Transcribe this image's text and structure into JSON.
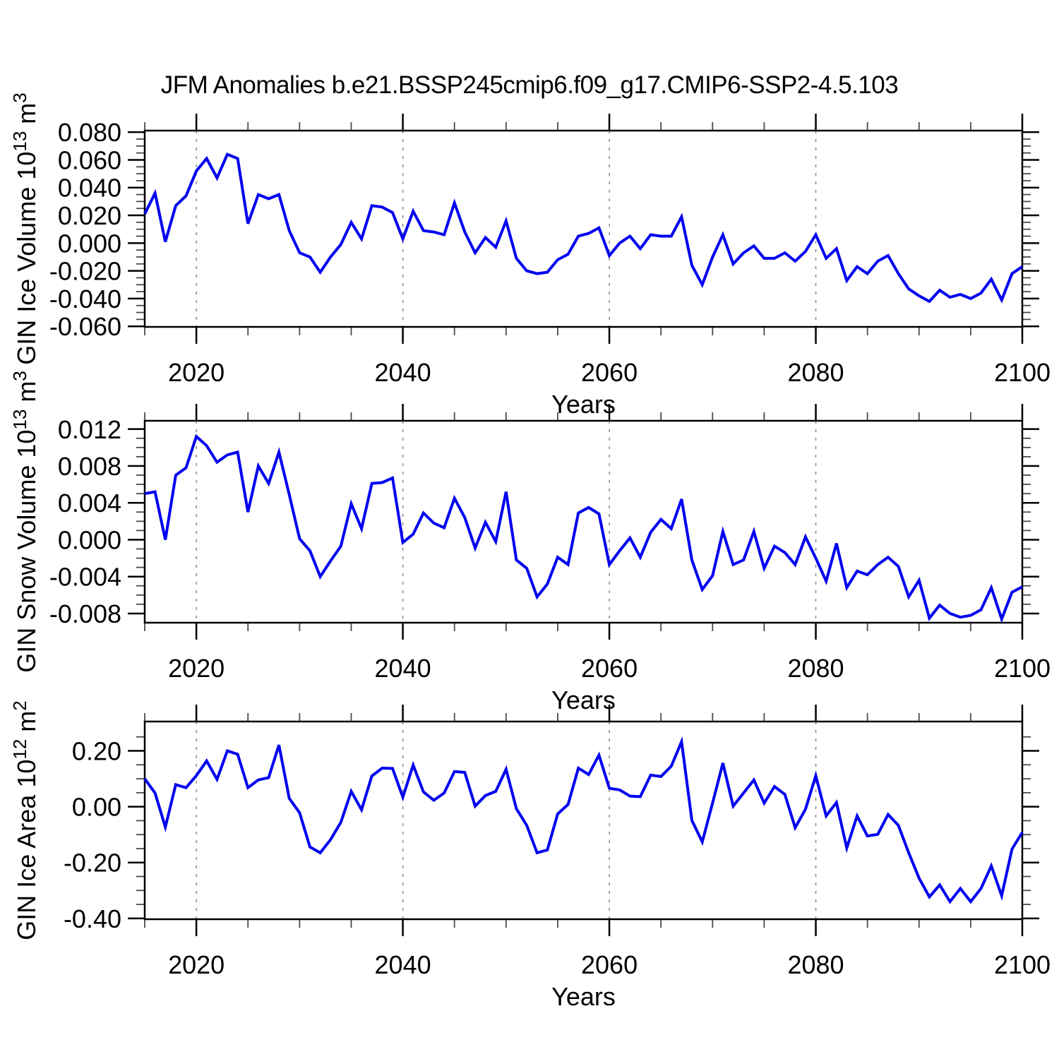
{
  "title": "JFM Anomalies b.e21.BSSP245cmip6.f09_g17.CMIP6-SSP2-4.5.103",
  "colors": {
    "line": "#0000f0",
    "grid": "#878787",
    "axis": "#000000",
    "minor_tick": "#4a4a4a"
  },
  "x_axis": {
    "label": "Years",
    "range": [
      2015,
      2100
    ],
    "major_ticks": [
      2020,
      2040,
      2060,
      2080,
      2100
    ],
    "major_labels": [
      "2020",
      "2040",
      "2060",
      "2080",
      "2100"
    ],
    "minor_step": 5,
    "gridlines": [
      2020,
      2040,
      2060,
      2080
    ]
  },
  "chart_data": [
    {
      "type": "line",
      "name": "gin-ice-volume",
      "ylabel": "GIN Ice Volume 10^13 m^3",
      "ylabel_parts": [
        {
          "t": "GIN Ice Volume 10"
        },
        {
          "t": "13",
          "sup": true
        },
        {
          "t": " m"
        },
        {
          "t": "3",
          "sup": true
        }
      ],
      "xlabel": "Years",
      "ylim": [
        -0.0604,
        0.0811
      ],
      "yticks": [
        0.08,
        0.06,
        0.04,
        0.02,
        0.0,
        -0.02,
        -0.04,
        -0.06
      ],
      "ytick_labels": [
        "0.080",
        "0.060",
        "0.040",
        "0.020",
        "0.000",
        "-0.020",
        "-0.040",
        "-0.060"
      ],
      "minor_step": 0.005,
      "values": [
        0.021,
        0.036,
        0.001,
        0.027,
        0.034,
        0.052,
        0.061,
        0.047,
        0.064,
        0.061,
        0.014,
        0.035,
        0.032,
        0.035,
        0.009,
        -0.007,
        -0.01,
        -0.021,
        -0.01,
        -0.001,
        0.015,
        0.003,
        0.027,
        0.026,
        0.022,
        0.003,
        0.023,
        0.009,
        0.008,
        0.006,
        0.029,
        0.008,
        -0.007,
        0.004,
        -0.003,
        0.016,
        -0.011,
        -0.02,
        -0.022,
        -0.021,
        -0.012,
        -0.008,
        0.005,
        0.007,
        0.011,
        -0.009,
        0.0,
        0.005,
        -0.004,
        0.006,
        0.005,
        0.005,
        0.019,
        -0.016,
        -0.03,
        -0.01,
        0.006,
        -0.015,
        -0.007,
        -0.002,
        -0.011,
        -0.011,
        -0.007,
        -0.013,
        -0.006,
        0.006,
        -0.011,
        -0.004,
        -0.027,
        -0.017,
        -0.022,
        -0.013,
        -0.009,
        -0.022,
        -0.033,
        -0.038,
        -0.042,
        -0.034,
        -0.039,
        -0.037,
        -0.04,
        -0.036,
        -0.026,
        -0.041,
        -0.022,
        -0.017
      ]
    },
    {
      "type": "line",
      "name": "gin-snow-volume",
      "ylabel": "GIN Snow Volume 10^13 m^3",
      "ylabel_parts": [
        {
          "t": "GIN Snow Volume 10"
        },
        {
          "t": "13",
          "sup": true
        },
        {
          "t": " m"
        },
        {
          "t": "3",
          "sup": true
        }
      ],
      "xlabel": "Years",
      "ylim": [
        -0.009,
        0.0129
      ],
      "yticks": [
        0.012,
        0.008,
        0.004,
        0.0,
        -0.004,
        -0.008
      ],
      "ytick_labels": [
        "0.012",
        "0.008",
        "0.004",
        "0.000",
        "-0.004",
        "-0.008"
      ],
      "minor_step": 0.001,
      "values": [
        0.005,
        0.0052,
        0.0,
        0.007,
        0.0078,
        0.0112,
        0.0102,
        0.0084,
        0.0092,
        0.0095,
        0.003,
        0.008,
        0.0061,
        0.0095,
        0.0049,
        0.0001,
        -0.0012,
        -0.004,
        -0.0023,
        -0.0007,
        0.0039,
        0.0012,
        0.0061,
        0.0062,
        0.0067,
        -0.0003,
        0.0006,
        0.0029,
        0.0018,
        0.0013,
        0.0045,
        0.0024,
        -0.0009,
        0.0019,
        -0.0002,
        0.0052,
        -0.0022,
        -0.0031,
        -0.0062,
        -0.0048,
        -0.0019,
        -0.0027,
        0.0029,
        0.0035,
        0.0028,
        -0.0027,
        -0.0012,
        0.0002,
        -0.0019,
        0.0008,
        0.0022,
        0.0012,
        0.0044,
        -0.0022,
        -0.0054,
        -0.0039,
        0.0009,
        -0.0027,
        -0.0022,
        0.0009,
        -0.0031,
        -0.0007,
        -0.0014,
        -0.0027,
        0.0003,
        -0.002,
        -0.0045,
        -0.0004,
        -0.0052,
        -0.0034,
        -0.0038,
        -0.0027,
        -0.0019,
        -0.0029,
        -0.0062,
        -0.0044,
        -0.0085,
        -0.0071,
        -0.008,
        -0.0084,
        -0.0082,
        -0.0076,
        -0.0052,
        -0.0086,
        -0.0057,
        -0.0051
      ]
    },
    {
      "type": "line",
      "name": "gin-ice-area",
      "ylabel": "GIN Ice Area 10^12 m^2",
      "ylabel_parts": [
        {
          "t": "GIN Ice Area 10"
        },
        {
          "t": "12",
          "sup": true
        },
        {
          "t": " m"
        },
        {
          "t": "2",
          "sup": true
        }
      ],
      "xlabel": "Years",
      "ylim": [
        -0.403,
        0.305
      ],
      "yticks": [
        0.2,
        0.0,
        -0.2,
        -0.4
      ],
      "ytick_labels": [
        "0.20",
        "0.00",
        "-0.20",
        "-0.40"
      ],
      "minor_step": 0.05,
      "values": [
        0.1,
        0.049,
        -0.073,
        0.079,
        0.068,
        0.111,
        0.164,
        0.098,
        0.2,
        0.188,
        0.068,
        0.096,
        0.104,
        0.221,
        0.03,
        -0.022,
        -0.144,
        -0.165,
        -0.118,
        -0.056,
        0.055,
        -0.011,
        0.11,
        0.138,
        0.137,
        0.034,
        0.149,
        0.053,
        0.023,
        0.049,
        0.126,
        0.123,
        0.002,
        0.04,
        0.055,
        0.134,
        -0.007,
        -0.067,
        -0.165,
        -0.155,
        -0.026,
        0.008,
        0.138,
        0.115,
        0.185,
        0.066,
        0.06,
        0.038,
        0.036,
        0.113,
        0.108,
        0.145,
        0.233,
        -0.049,
        -0.126,
        0.013,
        0.156,
        0.002,
        0.049,
        0.096,
        0.013,
        0.072,
        0.044,
        -0.075,
        -0.009,
        0.111,
        -0.033,
        0.015,
        -0.148,
        -0.033,
        -0.105,
        -0.099,
        -0.028,
        -0.067,
        -0.165,
        -0.256,
        -0.323,
        -0.28,
        -0.34,
        -0.293,
        -0.34,
        -0.293,
        -0.212,
        -0.319,
        -0.152,
        -0.092
      ]
    }
  ],
  "years": [
    2015,
    2016,
    2017,
    2018,
    2019,
    2020,
    2021,
    2022,
    2023,
    2024,
    2025,
    2026,
    2027,
    2028,
    2029,
    2030,
    2031,
    2032,
    2033,
    2034,
    2035,
    2036,
    2037,
    2038,
    2039,
    2040,
    2041,
    2042,
    2043,
    2044,
    2045,
    2046,
    2047,
    2048,
    2049,
    2050,
    2051,
    2052,
    2053,
    2054,
    2055,
    2056,
    2057,
    2058,
    2059,
    2060,
    2061,
    2062,
    2063,
    2064,
    2065,
    2066,
    2067,
    2068,
    2069,
    2070,
    2071,
    2072,
    2073,
    2074,
    2075,
    2076,
    2077,
    2078,
    2079,
    2080,
    2081,
    2082,
    2083,
    2084,
    2085,
    2086,
    2087,
    2088,
    2089,
    2090,
    2091,
    2092,
    2093,
    2094,
    2095,
    2096,
    2097,
    2098,
    2099,
    2100
  ]
}
